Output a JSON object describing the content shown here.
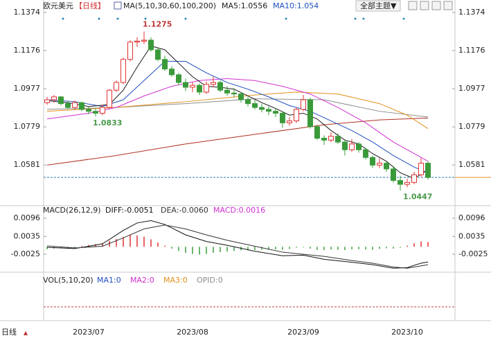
{
  "header": {
    "symbol": "欧元美元",
    "period": "【日线】",
    "theme_button": "全部主题▼",
    "period_switch": "日线"
  },
  "chart_data": [
    {
      "type": "candlestick",
      "legend_title": "MA(5,10,30,60,100,200)",
      "categories": [
        null,
        null,
        null,
        null,
        null,
        null,
        "2023/07",
        null,
        null,
        null,
        null,
        null,
        null,
        null,
        null,
        null,
        null,
        null,
        null,
        null,
        null,
        "2023/08",
        null,
        null,
        null,
        null,
        null,
        null,
        null,
        null,
        null,
        null,
        null,
        null,
        null,
        null,
        null,
        "2023/09",
        null,
        null,
        null,
        null,
        null,
        null,
        null,
        null,
        null,
        null,
        null,
        null,
        null,
        null,
        "2023/10",
        null,
        null,
        null
      ],
      "open": [
        1.0905,
        1.092,
        1.0935,
        1.09,
        1.088,
        1.0905,
        1.087,
        1.086,
        1.085,
        1.088,
        1.097,
        1.101,
        1.113,
        1.122,
        1.1225,
        1.123,
        1.118,
        1.113,
        1.108,
        1.105,
        1.101,
        1.0985,
        1.0995,
        1.096,
        1.1,
        1.101,
        1.097,
        1.0955,
        1.095,
        1.092,
        1.09,
        1.088,
        1.087,
        1.086,
        1.085,
        1.08,
        1.081,
        1.087,
        1.092,
        1.078,
        1.072,
        1.071,
        1.073,
        1.07,
        1.066,
        1.069,
        1.066,
        1.062,
        1.058,
        1.059,
        1.056,
        1.05,
        1.048,
        1.049,
        1.053,
        1.059
      ],
      "high": [
        1.0935,
        1.0945,
        1.094,
        1.0915,
        1.0915,
        1.091,
        1.0885,
        1.0875,
        1.0895,
        1.0975,
        1.102,
        1.114,
        1.123,
        1.1245,
        1.1275,
        1.1245,
        1.119,
        1.115,
        1.1095,
        1.106,
        1.103,
        1.101,
        1.1005,
        1.1015,
        1.104,
        1.102,
        1.099,
        1.098,
        1.096,
        1.0935,
        1.092,
        1.09,
        1.0885,
        1.0875,
        1.086,
        1.083,
        1.088,
        1.0945,
        1.093,
        1.079,
        1.0735,
        1.075,
        1.0745,
        1.0715,
        1.0715,
        1.07,
        1.067,
        1.063,
        1.0615,
        1.06,
        1.0575,
        1.0525,
        1.051,
        1.0545,
        1.0617,
        1.06
      ],
      "low": [
        1.0895,
        1.0905,
        1.089,
        1.087,
        1.087,
        1.086,
        1.0845,
        1.0833,
        1.084,
        1.0875,
        1.096,
        1.1,
        1.112,
        1.1195,
        1.121,
        1.117,
        1.112,
        1.107,
        1.104,
        1.0995,
        1.0965,
        1.096,
        1.0945,
        1.095,
        1.0985,
        1.096,
        1.094,
        1.0935,
        1.0905,
        1.0885,
        1.087,
        1.0855,
        1.084,
        1.083,
        1.0775,
        1.0785,
        1.08,
        1.086,
        1.077,
        1.071,
        1.0685,
        1.07,
        1.069,
        1.063,
        1.065,
        1.0645,
        1.061,
        1.0565,
        1.0565,
        1.0545,
        1.049,
        1.0447,
        1.0465,
        1.048,
        1.052,
        1.0505
      ],
      "close": [
        1.092,
        1.0935,
        1.09,
        1.088,
        1.0905,
        1.087,
        1.086,
        1.085,
        1.088,
        1.097,
        1.101,
        1.113,
        1.122,
        1.1225,
        1.123,
        1.118,
        1.113,
        1.108,
        1.105,
        1.101,
        1.0985,
        1.0995,
        1.096,
        1.1,
        1.101,
        1.097,
        1.0955,
        1.095,
        1.092,
        1.09,
        1.088,
        1.087,
        1.086,
        1.085,
        1.08,
        1.081,
        1.087,
        1.092,
        1.078,
        1.072,
        1.071,
        1.073,
        1.07,
        1.066,
        1.069,
        1.066,
        1.062,
        1.058,
        1.059,
        1.056,
        1.05,
        1.048,
        1.049,
        1.053,
        1.059,
        1.0516
      ],
      "up_color": "#e03030",
      "down_color": "#3a9a3a",
      "last_price_color": "#2a7ab0",
      "series": [
        {
          "name": "MA5:1.0556",
          "color": "#1a1a1a",
          "x": [
            0,
            3,
            6,
            9,
            11,
            13,
            15,
            17,
            19,
            21,
            23,
            25,
            27,
            29,
            31,
            33,
            35,
            37,
            39,
            41,
            43,
            45,
            47,
            49,
            51,
            53,
            55
          ],
          "values": [
            1.0915,
            1.0905,
            1.0885,
            1.0895,
            1.097,
            1.109,
            1.12,
            1.118,
            1.111,
            1.104,
            1.099,
            1.0985,
            1.0975,
            1.094,
            1.0905,
            1.0875,
            1.084,
            1.085,
            1.082,
            1.076,
            1.071,
            1.069,
            1.064,
            1.06,
            1.054,
            1.051,
            1.0556
          ]
        },
        {
          "name": "MA10:1.054",
          "color": "#1f4fc0",
          "x": [
            0,
            4,
            8,
            11,
            14,
            17,
            20,
            23,
            26,
            29,
            32,
            35,
            38,
            41,
            44,
            47,
            50,
            53,
            55
          ],
          "values": [
            1.092,
            1.091,
            1.0885,
            1.092,
            1.102,
            1.112,
            1.112,
            1.106,
            1.101,
            1.0975,
            1.0935,
            1.089,
            1.086,
            1.081,
            1.076,
            1.07,
            1.063,
            1.057,
            1.054
          ]
        },
        {
          "color": "#d030d0",
          "x": [
            0,
            6,
            10,
            14,
            18,
            22,
            26,
            30,
            34,
            38,
            42,
            46,
            50,
            53,
            55
          ],
          "values": [
            1.082,
            1.085,
            1.088,
            1.094,
            1.099,
            1.102,
            1.103,
            1.102,
            1.099,
            1.095,
            1.088,
            1.08,
            1.07,
            1.064,
            1.06
          ]
        },
        {
          "color": "#e0901a",
          "x": [
            0,
            10,
            20,
            30,
            36,
            42,
            48,
            52,
            55
          ],
          "values": [
            1.086,
            1.088,
            1.091,
            1.0945,
            1.096,
            1.095,
            1.09,
            1.084,
            1.077
          ]
        },
        {
          "color": "#8c8c8c",
          "x": [
            0,
            10,
            20,
            30,
            40,
            48,
            55
          ],
          "values": [
            1.087,
            1.088,
            1.09,
            1.0925,
            1.092,
            1.086,
            1.083
          ]
        },
        {
          "color": "#b03020",
          "x": [
            0,
            10,
            20,
            30,
            40,
            48,
            55
          ],
          "values": [
            1.058,
            1.063,
            1.069,
            1.074,
            1.079,
            1.0815,
            1.0825
          ]
        }
      ],
      "ylim": [
        1.0376,
        1.1403
      ],
      "yticks": [
        1.1374,
        1.1176,
        1.0977,
        1.0779,
        1.0581
      ]
    },
    {
      "type": "macd",
      "title": "MACD(26,12,9)",
      "histogram": [
        -0.0008,
        -0.0006,
        -0.0005,
        -0.0006,
        -0.0004,
        0.0003,
        0.0006,
        0.0009,
        0.0012,
        0.002,
        0.0026,
        0.0033,
        0.004,
        0.0038,
        0.0034,
        0.0025,
        0.0014,
        0.0004,
        -0.0006,
        -0.0014,
        -0.002,
        -0.0024,
        -0.0026,
        -0.0024,
        -0.002,
        -0.0018,
        -0.0016,
        -0.0014,
        -0.0012,
        -0.0012,
        -0.0011,
        -0.001,
        -0.001,
        -0.0008,
        -0.001,
        -0.0007,
        -0.0003,
        -0.0002,
        -0.0006,
        -0.001,
        -0.0011,
        -0.0009,
        -0.001,
        -0.0011,
        -0.0008,
        -0.0008,
        -0.0009,
        -0.001,
        -0.0007,
        -0.0005,
        -0.0006,
        -0.0003,
        0.0004,
        0.0012,
        0.0018,
        0.0016
      ],
      "histogram_name": "MACD:0.0016",
      "histogram_name_color": "#d030d0",
      "up_color": "#e03030",
      "down_color": "#3a9a3a",
      "series": [
        {
          "name": "DIFF:-0.0051",
          "color": "#111111",
          "x": [
            0,
            4,
            8,
            11,
            13,
            15,
            17,
            20,
            23,
            26,
            30,
            34,
            37,
            40,
            44,
            47,
            50,
            52,
            54,
            55
          ],
          "values": [
            -0.0002,
            -0.0006,
            0.001,
            0.0055,
            0.008,
            0.0088,
            0.0075,
            0.004,
            0.0018,
            0.0005,
            -0.0015,
            -0.003,
            -0.0028,
            -0.0042,
            -0.0052,
            -0.006,
            -0.0072,
            -0.007,
            -0.0055,
            -0.0051
          ]
        },
        {
          "name": "DEA:-0.0060",
          "color": "#333333",
          "x": [
            0,
            4,
            8,
            11,
            14,
            17,
            20,
            23,
            26,
            30,
            34,
            37,
            40,
            44,
            47,
            50,
            52,
            54,
            55
          ],
          "values": [
            0.0003,
            -0.0004,
            0.0002,
            0.003,
            0.006,
            0.0073,
            0.006,
            0.004,
            0.0022,
            0.0002,
            -0.0018,
            -0.0025,
            -0.0032,
            -0.0046,
            -0.0055,
            -0.0068,
            -0.0072,
            -0.0064,
            -0.006
          ]
        }
      ],
      "ylim": [
        -0.0083,
        0.0131
      ],
      "yticks": [
        0.0096,
        0.0035,
        -0.0025
      ]
    },
    {
      "type": "volume",
      "title": "VOL(5,10,20)",
      "series": [
        {
          "name": "MA1:0",
          "color": "#1f4fc0"
        },
        {
          "name": "MA2:0",
          "color": "#d030d0"
        },
        {
          "name": "MA3:0",
          "color": "#e0901a"
        },
        {
          "name": "OPID:0",
          "color": "#8c8c8c"
        }
      ]
    }
  ]
}
